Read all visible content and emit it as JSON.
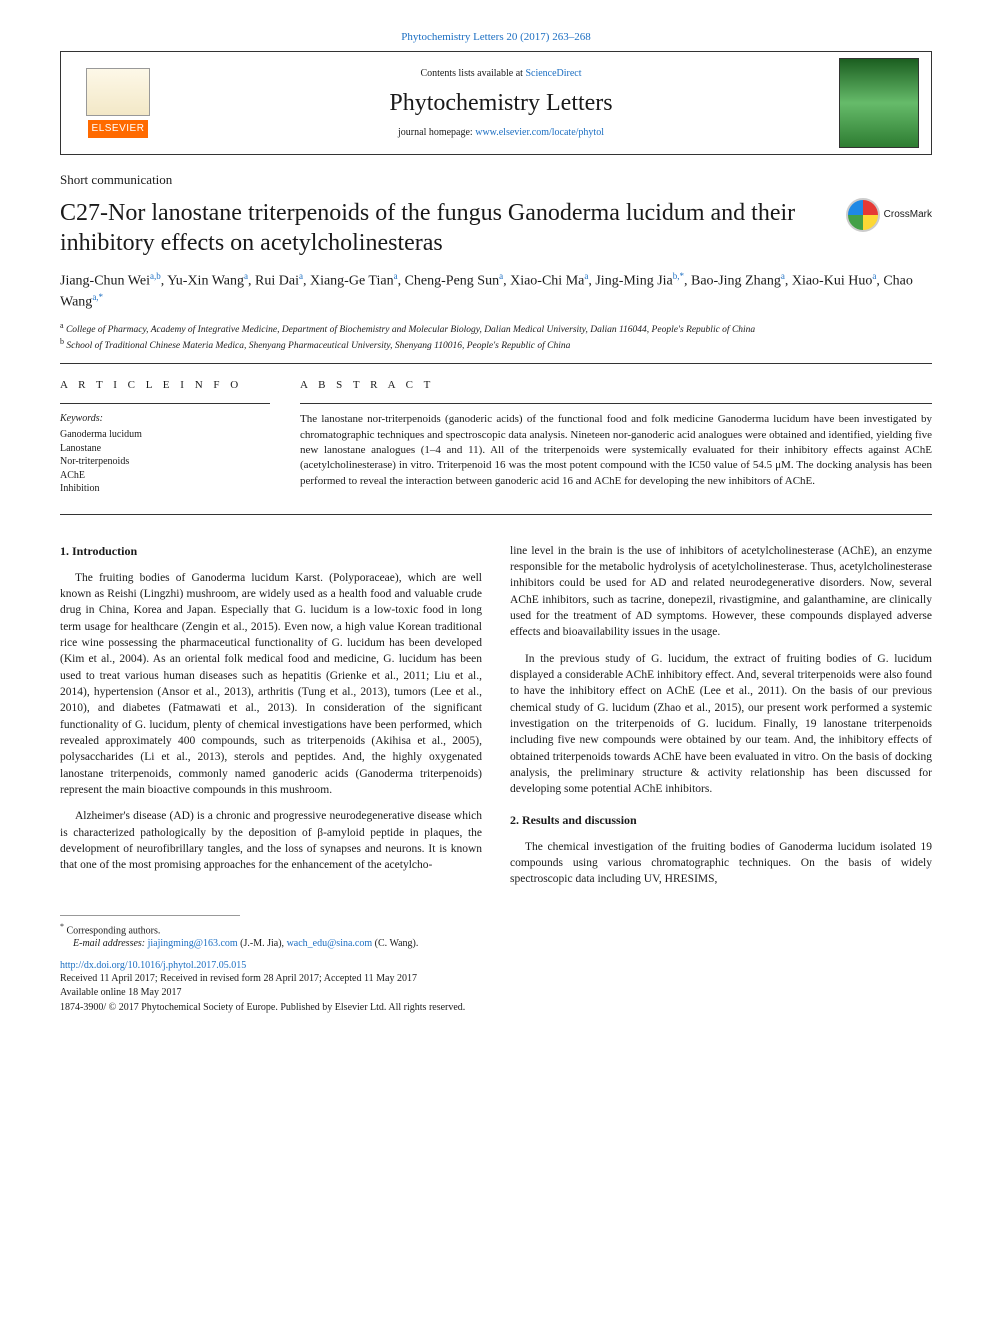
{
  "page_header": "Phytochemistry Letters 20 (2017) 263–268",
  "banner": {
    "contents_prefix": "Contents lists available at ",
    "contents_link": "ScienceDirect",
    "journal_name": "Phytochemistry Letters",
    "homepage_prefix": "journal homepage: ",
    "homepage_link": "www.elsevier.com/locate/phytol",
    "publisher": "ELSEVIER"
  },
  "article_type": "Short communication",
  "title": "C27-Nor lanostane triterpenoids of the fungus Ganoderma lucidum and their inhibitory effects on acetylcholinesteras",
  "crossmark_label": "CrossMark",
  "authors_html": "Jiang-Chun Wei<sup>a,b</sup>, Yu-Xin Wang<sup>a</sup>, Rui Dai<sup>a</sup>, Xiang-Ge Tian<sup>a</sup>, Cheng-Peng Sun<sup>a</sup>, Xiao-Chi Ma<sup>a</sup>, Jing-Ming Jia<sup>b,*</sup>, Bao-Jing Zhang<sup>a</sup>, Xiao-Kui Huo<sup>a</sup>, Chao Wang<sup>a,*</sup>",
  "affiliations": {
    "a": "a College of Pharmacy, Academy of Integrative Medicine, Department of Biochemistry and Molecular Biology, Dalian Medical University, Dalian 116044, People's Republic of China",
    "b": "b School of Traditional Chinese Materia Medica, Shenyang Pharmaceutical University, Shenyang 110016, People's Republic of China"
  },
  "article_info_head": "A R T I C L E  I N F O",
  "abstract_head": "A B S T R A C T",
  "keywords_label": "Keywords:",
  "keywords": [
    "Ganoderma lucidum",
    "Lanostane",
    "Nor-triterpenoids",
    "AChE",
    "Inhibition"
  ],
  "abstract": "The lanostane nor-triterpenoids (ganoderic acids) of the functional food and folk medicine Ganoderma lucidum have been investigated by chromatographic techniques and spectroscopic data analysis. Nineteen nor-ganoderic acid analogues were obtained and identified, yielding five new lanostane analogues (1–4 and 11). All of the triterpenoids were systemically evaluated for their inhibitory effects against AChE (acetylcholinesterase) in vitro. Triterpenoid 16 was the most potent compound with the IC50 value of 54.5 μM. The docking analysis has been performed to reveal the interaction between ganoderic acid 16 and AChE for developing the new inhibitors of AChE.",
  "sections": {
    "s1_head": "1. Introduction",
    "s1_p1": "The fruiting bodies of Ganoderma lucidum Karst. (Polyporaceae), which are well known as Reishi (Lingzhi) mushroom, are widely used as a health food and valuable crude drug in China, Korea and Japan. Especially that G. lucidum is a low-toxic food in long term usage for healthcare (Zengin et al., 2015). Even now, a high value Korean traditional rice wine possessing the pharmaceutical functionality of G. lucidum has been developed (Kim et al., 2004). As an oriental folk medical food and medicine, G. lucidum has been used to treat various human diseases such as hepatitis (Grienke et al., 2011; Liu et al., 2014), hypertension (Ansor et al., 2013), arthritis (Tung et al., 2013), tumors (Lee et al., 2010), and diabetes (Fatmawati et al., 2013). In consideration of the significant functionality of G. lucidum, plenty of chemical investigations have been performed, which revealed approximately 400 compounds, such as triterpenoids (Akihisa et al., 2005), polysaccharides (Li et al., 2013), sterols and peptides. And, the highly oxygenated lanostane triterpenoids, commonly named ganoderic acids (Ganoderma triterpenoids) represent the main bioactive compounds in this mushroom.",
    "s1_p2": "Alzheimer's disease (AD) is a chronic and progressive neurodegenerative disease which is characterized pathologically by the deposition of β-amyloid peptide in plaques, the development of neurofibrillary tangles, and the loss of synapses and neurons. It is known that one of the most promising approaches for the enhancement of the acetylcho-",
    "s1_p2b": "line level in the brain is the use of inhibitors of acetylcholinesterase (AChE), an enzyme responsible for the metabolic hydrolysis of acetylcholinesterase. Thus, acetylcholinesterase inhibitors could be used for AD and related neurodegenerative disorders. Now, several AChE inhibitors, such as tacrine, donepezil, rivastigmine, and galanthamine, are clinically used for the treatment of AD symptoms. However, these compounds displayed adverse effects and bioavailability issues in the usage.",
    "s1_p3": "In the previous study of G. lucidum, the extract of fruiting bodies of G. lucidum displayed a considerable AChE inhibitory effect. And, several triterpenoids were also found to have the inhibitory effect on AChE (Lee et al., 2011). On the basis of our previous chemical study of G. lucidum (Zhao et al., 2015), our present work performed a systemic investigation on the triterpenoids of G. lucidum. Finally, 19 lanostane triterpenoids including five new compounds were obtained by our team. And, the inhibitory effects of obtained triterpenoids towards AChE have been evaluated in vitro. On the basis of docking analysis, the preliminary structure & activity relationship has been discussed for developing some potential AChE inhibitors.",
    "s2_head": "2. Results and discussion",
    "s2_p1": "The chemical investigation of the fruiting bodies of Ganoderma lucidum isolated 19 compounds using various chromatographic techniques. On the basis of widely spectroscopic data including UV, HRESIMS,"
  },
  "footer": {
    "corr": "* Corresponding authors.",
    "email_label": "E-mail addresses: ",
    "email1": "jiajingming@163.com",
    "email1_who": " (J.-M. Jia), ",
    "email2": "wach_edu@sina.com",
    "email2_who": " (C. Wang).",
    "doi": "http://dx.doi.org/10.1016/j.phytol.2017.05.015",
    "received": "Received 11 April 2017; Received in revised form 28 April 2017; Accepted 11 May 2017",
    "online": "Available online 18 May 2017",
    "copyright": "1874-3900/ © 2017 Phytochemical Society of Europe. Published by Elsevier Ltd. All rights reserved."
  },
  "colors": {
    "link": "#1b6ec2",
    "text": "#1a1a1a",
    "publisher_bg": "#ff6a00"
  }
}
